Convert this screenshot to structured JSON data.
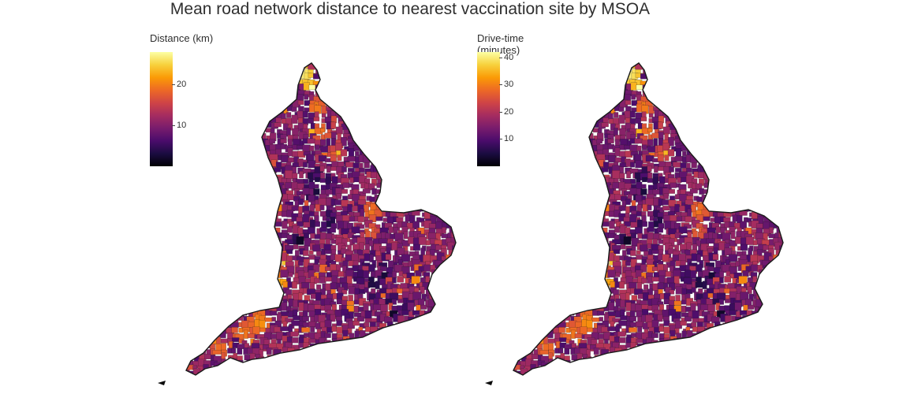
{
  "title": "Mean road network distance to nearest vaccination site by MSOA",
  "palette": {
    "stops": [
      "#000004",
      "#1b0c41",
      "#4a0c6b",
      "#781c6d",
      "#a52c60",
      "#cf4446",
      "#ed6925",
      "#fb9b06",
      "#f7d13d",
      "#fcffa4"
    ],
    "region_outline": "#1a1a1a",
    "background": "#ffffff"
  },
  "panels": [
    {
      "legend": {
        "title": "Distance (km)",
        "min": 0,
        "max": 28,
        "ticks": [
          {
            "value": 10,
            "label": "10"
          },
          {
            "value": 20,
            "label": "20"
          }
        ]
      },
      "map_icon": "england-msoa-choropleth"
    },
    {
      "legend": {
        "title": "Drive-time\n(minutes)",
        "min": 0,
        "max": 42,
        "ticks": [
          {
            "value": 10,
            "label": "10"
          },
          {
            "value": 20,
            "label": "20"
          },
          {
            "value": 30,
            "label": "30"
          },
          {
            "value": 40,
            "label": "40"
          }
        ]
      },
      "map_icon": "england-msoa-choropleth"
    }
  ]
}
